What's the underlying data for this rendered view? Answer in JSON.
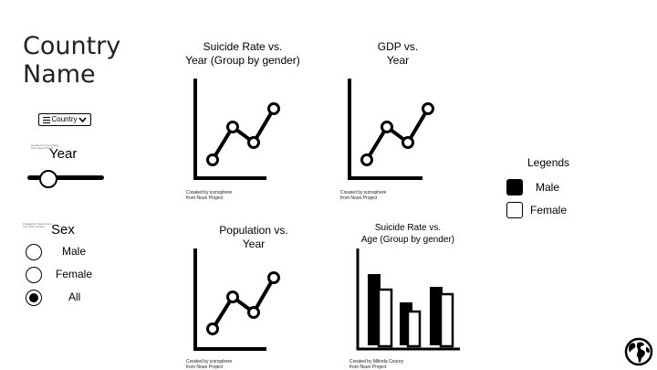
{
  "title_line1": "Country",
  "title_line2": "Name",
  "dropdown": {
    "label": "Country",
    "icon": "menu-icon",
    "chevron": "chevron-down-icon"
  },
  "year": {
    "label": "Year",
    "attribution": "Created by iconsphere from Noun Project",
    "slider_value": 0.2
  },
  "sex": {
    "label": "Sex",
    "attribution": "Created by Travis Avery from Noun Project",
    "options": [
      {
        "label": "Male",
        "selected": false
      },
      {
        "label": "Female",
        "selected": false
      },
      {
        "label": "All",
        "selected": true
      }
    ]
  },
  "charts": [
    {
      "title_line1": "Suicide Rate vs.",
      "title_line2": "Year (Group by gender)",
      "credit_line1": "Created by iconsphere",
      "credit_line2": "from Noun Project",
      "icon": "line-chart-icon"
    },
    {
      "title_line1": "GDP vs.",
      "title_line2": "Year",
      "credit_line1": "Created by iconsphere",
      "credit_line2": "from Noun Project",
      "icon": "line-chart-icon"
    },
    {
      "title_line1": "Population vs.",
      "title_line2": "Year",
      "credit_line1": "Created by iconsphere",
      "credit_line2": "from Noun Project",
      "icon": "line-chart-icon"
    },
    {
      "title_line1": "Suicide Rate vs.",
      "title_line2": "Age (Group by gender)",
      "credit_line1": "Created by Milinda Courey",
      "credit_line2": "from Noun Project",
      "icon": "bar-chart-icon"
    }
  ],
  "legend": {
    "title": "Legends",
    "items": [
      {
        "label": "Male",
        "color": "#000000"
      },
      {
        "label": "Female",
        "color": "#ffffff"
      }
    ]
  },
  "globe": {
    "icon": "globe-icon"
  }
}
